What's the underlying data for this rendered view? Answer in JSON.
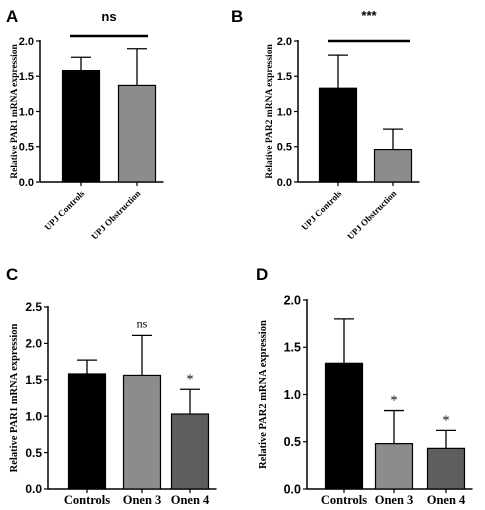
{
  "figure": {
    "panels": [
      "A",
      "B",
      "C",
      "D"
    ]
  },
  "chart_data": [
    {
      "panel": "A",
      "type": "bar",
      "ylabel": "Relative PAR1 mRNA expression",
      "ylim": [
        0,
        2.0
      ],
      "yticks": [
        "0.0",
        "0.5",
        "1.0",
        "1.5",
        "2.0"
      ],
      "categories": [
        "UPJ Controls",
        "UPJ Obstruction"
      ],
      "rotated_labels": true,
      "values": [
        1.58,
        1.37
      ],
      "errors": [
        0.19,
        0.52
      ],
      "colors": [
        "#000000",
        "#8c8c8c"
      ],
      "significance": {
        "bracket": true,
        "label": "ns"
      },
      "bar_marks": [
        "",
        ""
      ]
    },
    {
      "panel": "B",
      "type": "bar",
      "ylabel": "Relative PAR2 mRNA expression",
      "ylim": [
        0,
        2.0
      ],
      "yticks": [
        "0.0",
        "0.5",
        "1.0",
        "1.5",
        "2.0"
      ],
      "categories": [
        "UPJ Controls",
        "UPJ Obstruction"
      ],
      "rotated_labels": true,
      "values": [
        1.33,
        0.46
      ],
      "errors": [
        0.47,
        0.29
      ],
      "colors": [
        "#000000",
        "#8c8c8c"
      ],
      "significance": {
        "bracket": true,
        "label": "***"
      },
      "bar_marks": [
        "",
        ""
      ]
    },
    {
      "panel": "C",
      "type": "bar",
      "ylabel": "Relative PAR1 mRNA expression",
      "ylim": [
        0,
        2.5
      ],
      "yticks": [
        "0.0",
        "0.5",
        "1.0",
        "1.5",
        "2.0",
        "2.5"
      ],
      "categories": [
        "Controls",
        "Onen 3",
        "Onen 4"
      ],
      "rotated_labels": false,
      "values": [
        1.58,
        1.56,
        1.03
      ],
      "errors": [
        0.19,
        0.55,
        0.34
      ],
      "colors": [
        "#000000",
        "#8c8c8c",
        "#5e5e5e"
      ],
      "significance": null,
      "bar_marks": [
        "",
        "ns",
        "*"
      ]
    },
    {
      "panel": "D",
      "type": "bar",
      "ylabel": "Relative PAR2 mRNA expression",
      "ylim": [
        0,
        2.0
      ],
      "yticks": [
        "0.0",
        "0.5",
        "1.0",
        "1.5",
        "2.0"
      ],
      "categories": [
        "Controls",
        "Onen 3",
        "Onen 4"
      ],
      "rotated_labels": false,
      "values": [
        1.33,
        0.48,
        0.43
      ],
      "errors": [
        0.47,
        0.35,
        0.19
      ],
      "colors": [
        "#000000",
        "#8c8c8c",
        "#5e5e5e"
      ],
      "significance": null,
      "bar_marks": [
        "",
        "*",
        "*"
      ]
    }
  ]
}
